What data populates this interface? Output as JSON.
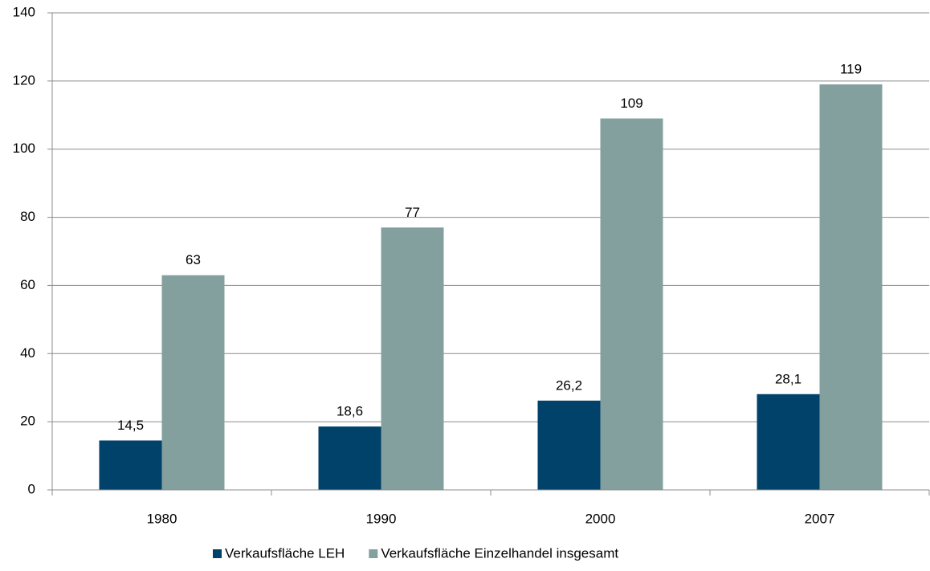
{
  "chart_data": {
    "type": "bar",
    "categories": [
      "1980",
      "1990",
      "2000",
      "2007"
    ],
    "series": [
      {
        "name": "Verkaufsfläche LEH",
        "color": "#00426a",
        "values": [
          14.5,
          18.6,
          26.2,
          28.1
        ],
        "value_labels": [
          "14,5",
          "18,6",
          "26,2",
          "28,1"
        ]
      },
      {
        "name": "Verkaufsfläche Einzelhandel insgesamt",
        "color": "#84a09e",
        "values": [
          63,
          77,
          109,
          119
        ]
      }
    ],
    "ylim": [
      0,
      140
    ],
    "yticks": [
      0,
      20,
      40,
      60,
      80,
      100,
      120,
      140
    ],
    "grid": true,
    "legend": "bottom"
  }
}
